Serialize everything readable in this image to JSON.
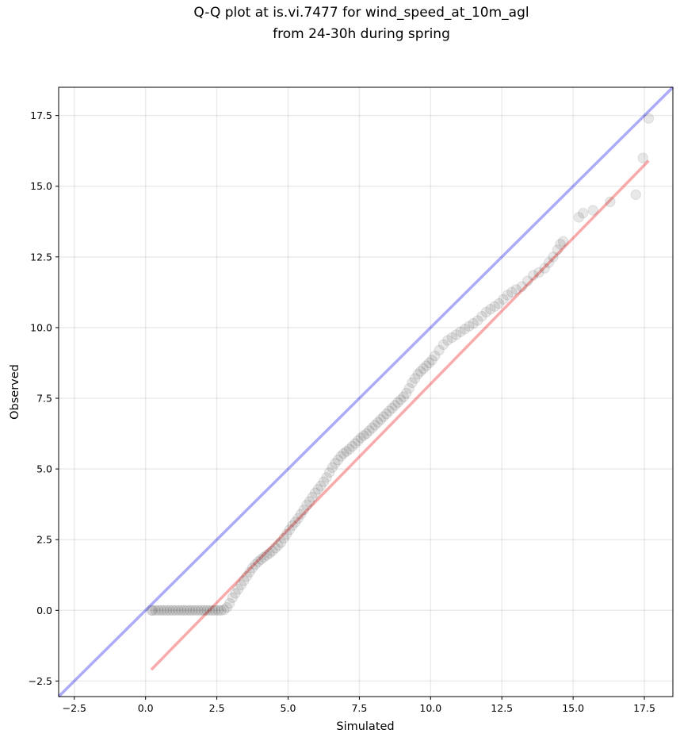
{
  "chart_data": {
    "type": "scatter",
    "title": "Q-Q plot at is.vi.7477 for wind_speed_at_10m_agl",
    "subtitle": "from 24-30h during spring",
    "xlabel": "Simulated",
    "ylabel": "Observed",
    "xlim": [
      -3.05,
      18.5
    ],
    "ylim": [
      -3.05,
      18.5
    ],
    "x_ticks": [
      -2.5,
      0.0,
      2.5,
      5.0,
      7.5,
      10.0,
      12.5,
      15.0,
      17.5
    ],
    "y_ticks": [
      -2.5,
      0.0,
      2.5,
      5.0,
      7.5,
      10.0,
      12.5,
      15.0,
      17.5
    ],
    "x_tick_labels": [
      "−2.5",
      "0.0",
      "2.5",
      "5.0",
      "7.5",
      "10.0",
      "12.5",
      "15.0",
      "17.5"
    ],
    "y_tick_labels": [
      "−2.5",
      "0.0",
      "2.5",
      "5.0",
      "7.5",
      "10.0",
      "12.5",
      "15.0",
      "17.5"
    ],
    "grid": true,
    "series": [
      {
        "kind": "points",
        "color": "#000000",
        "x": [
          0.2,
          0.25,
          0.35,
          0.45,
          0.55,
          0.65,
          0.75,
          0.85,
          0.95,
          1.05,
          1.15,
          1.25,
          1.35,
          1.45,
          1.55,
          1.65,
          1.75,
          1.85,
          1.95,
          2.05,
          2.15,
          2.25,
          2.35,
          2.45,
          2.55,
          2.65,
          2.75,
          2.85,
          2.95,
          3.05,
          3.15,
          3.25,
          3.35,
          3.45,
          3.55,
          3.65,
          3.75,
          3.85,
          3.95,
          4.05,
          4.15,
          4.25,
          4.35,
          4.45,
          4.55,
          4.65,
          4.75,
          4.85,
          4.95,
          5.05,
          5.15,
          5.25,
          5.35,
          5.45,
          5.55,
          5.65,
          5.75,
          5.85,
          5.95,
          6.05,
          6.15,
          6.25,
          6.35,
          6.45,
          6.55,
          6.65,
          6.75,
          6.85,
          6.95,
          7.05,
          7.15,
          7.25,
          7.35,
          7.45,
          7.55,
          7.65,
          7.75,
          7.85,
          7.95,
          8.05,
          8.15,
          8.25,
          8.35,
          8.45,
          8.55,
          8.65,
          8.75,
          8.85,
          8.95,
          9.05,
          9.15,
          9.25,
          9.35,
          9.45,
          9.55,
          9.65,
          9.75,
          9.85,
          9.95,
          10.05,
          10.15,
          10.3,
          10.45,
          10.6,
          10.75,
          10.9,
          11.05,
          11.2,
          11.35,
          11.5,
          11.65,
          11.8,
          11.95,
          12.1,
          12.25,
          12.4,
          12.55,
          12.7,
          12.85,
          13.0,
          13.2,
          13.4,
          13.6,
          13.8,
          14.0,
          14.15,
          14.3,
          14.45,
          14.55,
          14.65,
          15.2,
          15.35,
          15.7,
          16.3,
          17.2,
          17.45,
          17.65
        ],
        "y": [
          0.0,
          0.0,
          0.0,
          0.0,
          0.0,
          0.0,
          0.0,
          0.0,
          0.0,
          0.0,
          0.0,
          0.0,
          0.0,
          0.0,
          0.0,
          0.0,
          0.0,
          0.0,
          0.0,
          0.0,
          0.0,
          0.0,
          0.0,
          0.0,
          0.0,
          0.0,
          0.02,
          0.1,
          0.25,
          0.45,
          0.6,
          0.75,
          0.9,
          1.05,
          1.2,
          1.35,
          1.5,
          1.62,
          1.72,
          1.8,
          1.88,
          1.95,
          2.02,
          2.1,
          2.2,
          2.3,
          2.4,
          2.55,
          2.7,
          2.85,
          3.0,
          3.12,
          3.25,
          3.4,
          3.55,
          3.72,
          3.85,
          4.0,
          4.15,
          4.28,
          4.4,
          4.55,
          4.7,
          4.88,
          5.05,
          5.2,
          5.32,
          5.45,
          5.55,
          5.62,
          5.7,
          5.8,
          5.9,
          6.0,
          6.1,
          6.18,
          6.25,
          6.35,
          6.45,
          6.55,
          6.65,
          6.75,
          6.85,
          6.95,
          7.05,
          7.15,
          7.25,
          7.35,
          7.45,
          7.55,
          7.68,
          7.85,
          8.05,
          8.2,
          8.35,
          8.45,
          8.55,
          8.65,
          8.75,
          8.85,
          9.0,
          9.2,
          9.4,
          9.55,
          9.65,
          9.75,
          9.85,
          9.95,
          10.05,
          10.15,
          10.25,
          10.4,
          10.55,
          10.65,
          10.75,
          10.85,
          11.0,
          11.15,
          11.25,
          11.35,
          11.45,
          11.65,
          11.85,
          11.95,
          12.1,
          12.3,
          12.5,
          12.75,
          12.95,
          13.05,
          13.9,
          14.05,
          14.15,
          14.45,
          14.7,
          16.0,
          17.4
        ]
      },
      {
        "kind": "line",
        "color": "#0000ee",
        "x": [
          -3.05,
          18.5
        ],
        "y": [
          -3.05,
          18.5
        ]
      },
      {
        "kind": "line",
        "color": "#ee0000",
        "x": [
          0.2,
          17.65
        ],
        "y": [
          -2.1,
          15.9
        ]
      }
    ]
  }
}
